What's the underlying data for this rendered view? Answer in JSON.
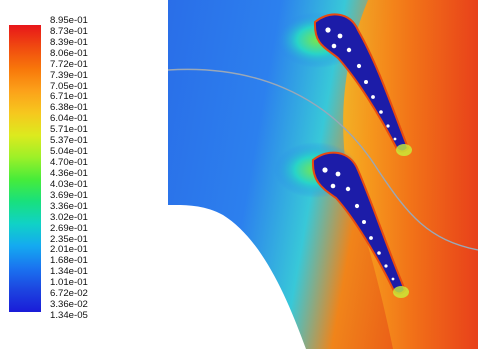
{
  "colormap": {
    "labels": [
      "8.95e-01",
      "8.73e-01",
      "8.39e-01",
      "8.06e-01",
      "7.72e-01",
      "7.39e-01",
      "7.05e-01",
      "6.71e-01",
      "6.38e-01",
      "6.04e-01",
      "5.71e-01",
      "5.37e-01",
      "5.04e-01",
      "4.70e-01",
      "4.36e-01",
      "4.03e-01",
      "3.69e-01",
      "3.36e-01",
      "3.02e-01",
      "2.69e-01",
      "2.35e-01",
      "2.01e-01",
      "1.68e-01",
      "1.34e-01",
      "1.01e-01",
      "6.72e-02",
      "3.36e-02",
      "1.34e-05"
    ],
    "colors": [
      "#e8161a",
      "#f04a10",
      "#f8780a",
      "#fca21a",
      "#f6c81e",
      "#dcea1e",
      "#9cf028",
      "#46ec3a",
      "#18e07e",
      "#10d2c6",
      "#14aaf0",
      "#1a74f0",
      "#1c44e0",
      "#1a1cd8"
    ]
  },
  "contour_colors": {
    "low": "#1a2ad8",
    "mid_low": "#3a8ef0",
    "mid": "#22d8c8",
    "mid_high": "#8ae84a",
    "high": "#f07a1a",
    "max": "#e8281a"
  }
}
